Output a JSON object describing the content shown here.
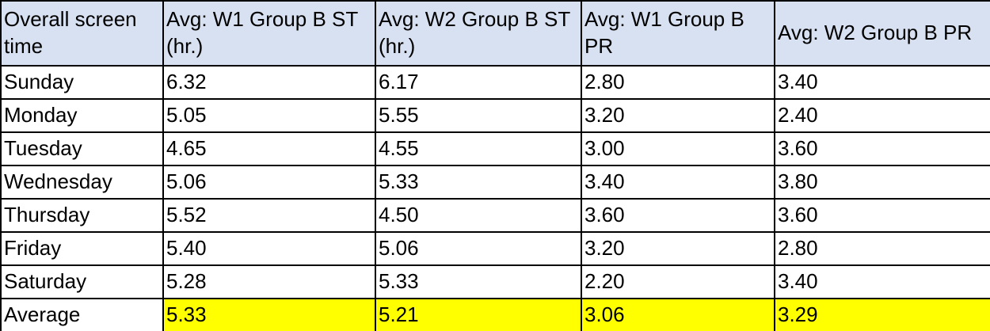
{
  "colors": {
    "header_bg": "#D8E1F2",
    "highlight_bg": "#FFFF00",
    "border": "#000000",
    "text": "#000000",
    "cell_bg": "#FFFFFF"
  },
  "table": {
    "columns": [
      "Overall screen time",
      "Avg: W1 Group B ST (hr.)",
      "Avg: W2 Group B ST (hr.)",
      "Avg: W1 Group B PR",
      "Avg: W2 Group B PR"
    ],
    "rows": [
      {
        "label": "Sunday",
        "values": [
          "6.32",
          "6.17",
          "2.80",
          "3.40"
        ],
        "highlight": false
      },
      {
        "label": "Monday",
        "values": [
          "5.05",
          "5.55",
          "3.20",
          "2.40"
        ],
        "highlight": false
      },
      {
        "label": "Tuesday",
        "values": [
          "4.65",
          "4.55",
          "3.00",
          "3.60"
        ],
        "highlight": false
      },
      {
        "label": "Wednesday",
        "values": [
          "5.06",
          "5.33",
          "3.40",
          "3.80"
        ],
        "highlight": false
      },
      {
        "label": "Thursday",
        "values": [
          "5.52",
          "4.50",
          "3.60",
          "3.60"
        ],
        "highlight": false
      },
      {
        "label": "Friday",
        "values": [
          "5.40",
          "5.06",
          "3.20",
          "2.80"
        ],
        "highlight": false
      },
      {
        "label": "Saturday",
        "values": [
          "5.28",
          "5.33",
          "2.20",
          "3.40"
        ],
        "highlight": false
      },
      {
        "label": "Average",
        "values": [
          "5.33",
          "5.21",
          "3.06",
          "3.29"
        ],
        "highlight": true
      }
    ]
  },
  "chart_data": {
    "type": "table",
    "title": "Overall screen time",
    "categories": [
      "Sunday",
      "Monday",
      "Tuesday",
      "Wednesday",
      "Thursday",
      "Friday",
      "Saturday",
      "Average"
    ],
    "series": [
      {
        "name": "Avg: W1 Group B ST (hr.)",
        "values": [
          6.32,
          5.05,
          4.65,
          5.06,
          5.52,
          5.4,
          5.28,
          5.33
        ]
      },
      {
        "name": "Avg: W2 Group B ST (hr.)",
        "values": [
          6.17,
          5.55,
          4.55,
          5.33,
          4.5,
          5.06,
          5.33,
          5.21
        ]
      },
      {
        "name": "Avg: W1 Group B PR",
        "values": [
          2.8,
          3.2,
          3.0,
          3.4,
          3.6,
          3.2,
          2.2,
          3.06
        ]
      },
      {
        "name": "Avg: W2 Group B PR",
        "values": [
          3.4,
          2.4,
          3.6,
          3.8,
          3.6,
          2.8,
          3.4,
          3.29
        ]
      }
    ],
    "highlighted_row": "Average",
    "highlight_color": "#FFFF00"
  }
}
